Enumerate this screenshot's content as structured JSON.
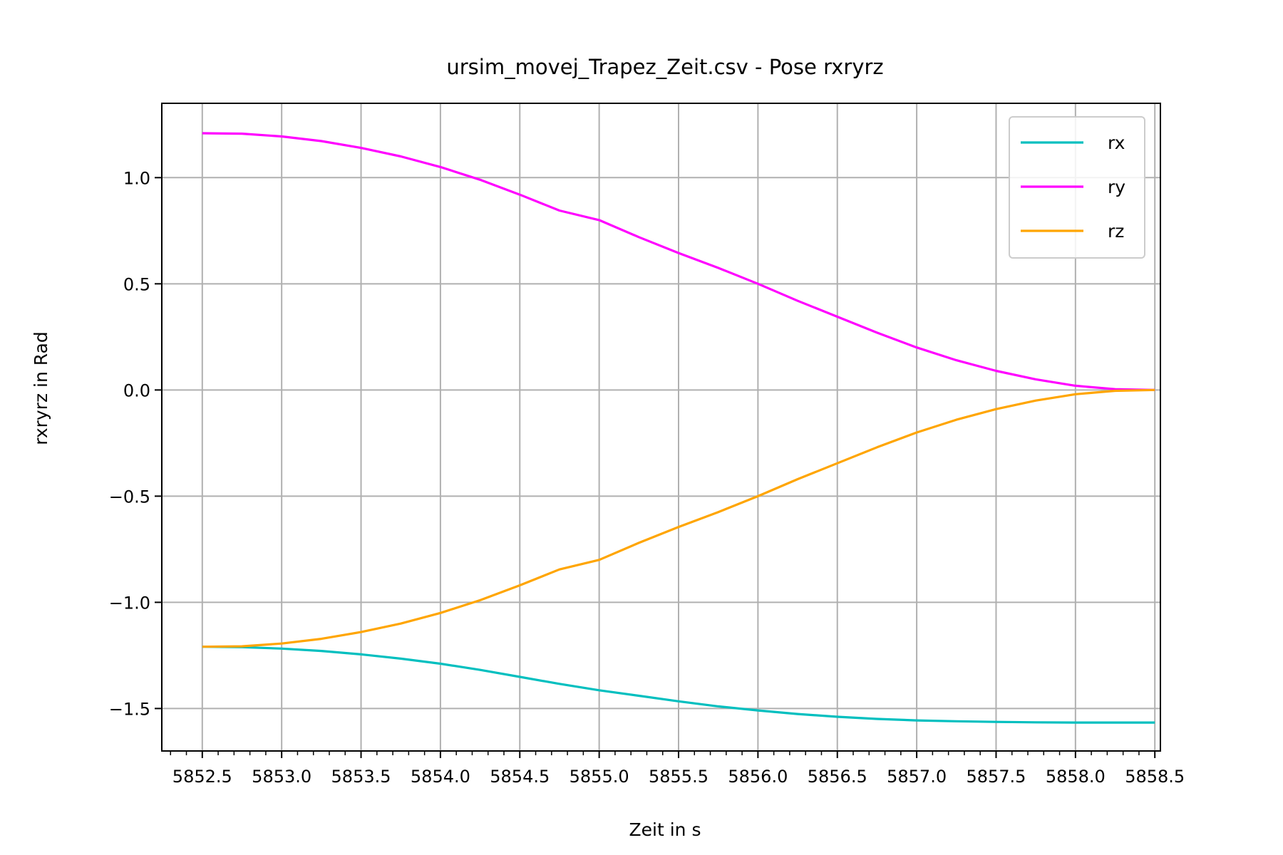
{
  "chart_data": {
    "type": "line",
    "title": "ursim_movej_Trapez_Zeit.csv - Pose rxryrz",
    "xlabel": "Zeit in s",
    "ylabel": "rxryrz in Rad",
    "xlim": [
      5852.245,
      5858.535
    ],
    "ylim": [
      -1.7,
      1.35
    ],
    "x_ticks": [
      5852.5,
      5853.0,
      5853.5,
      5854.0,
      5854.5,
      5855.0,
      5855.5,
      5856.0,
      5856.5,
      5857.0,
      5857.5,
      5858.0,
      5858.5
    ],
    "x_tick_labels": [
      "5852.5",
      "5853.0",
      "5853.5",
      "5854.0",
      "5854.5",
      "5855.0",
      "5855.5",
      "5856.0",
      "5856.5",
      "5857.0",
      "5857.5",
      "5858.0",
      "5858.5"
    ],
    "y_ticks": [
      1.0,
      0.5,
      0.0,
      -0.5,
      -1.0,
      -1.5
    ],
    "y_tick_labels": [
      "1.0",
      "0.5",
      "0.0",
      "−0.5",
      "−1.0",
      "−1.5"
    ],
    "grid": true,
    "legend_position": "top-right",
    "x": [
      5852.5,
      5852.75,
      5853.0,
      5853.25,
      5853.5,
      5853.75,
      5854.0,
      5854.25,
      5854.5,
      5854.75,
      5855.0,
      5855.25,
      5855.5,
      5855.75,
      5856.0,
      5856.25,
      5856.5,
      5856.75,
      5857.0,
      5857.25,
      5857.5,
      5857.75,
      5858.0,
      5858.25,
      5858.5
    ],
    "series": [
      {
        "name": "rx",
        "color": "#00bfbf",
        "values": [
          -1.209,
          -1.211,
          -1.218,
          -1.229,
          -1.245,
          -1.265,
          -1.289,
          -1.318,
          -1.351,
          -1.384,
          -1.414,
          -1.44,
          -1.466,
          -1.49,
          -1.509,
          -1.526,
          -1.539,
          -1.549,
          -1.556,
          -1.56,
          -1.563,
          -1.565,
          -1.566,
          -1.566,
          -1.566
        ]
      },
      {
        "name": "ry",
        "color": "#ff00ff",
        "values": [
          1.209,
          1.207,
          1.194,
          1.172,
          1.14,
          1.1,
          1.05,
          0.99,
          0.92,
          0.845,
          0.8,
          0.72,
          0.645,
          0.575,
          0.5,
          0.42,
          0.345,
          0.27,
          0.2,
          0.14,
          0.09,
          0.05,
          0.02,
          0.004,
          0.0
        ]
      },
      {
        "name": "rz",
        "color": "#ffa500",
        "values": [
          -1.209,
          -1.207,
          -1.194,
          -1.172,
          -1.14,
          -1.1,
          -1.05,
          -0.99,
          -0.92,
          -0.845,
          -0.8,
          -0.72,
          -0.645,
          -0.575,
          -0.5,
          -0.42,
          -0.345,
          -0.27,
          -0.2,
          -0.14,
          -0.09,
          -0.05,
          -0.02,
          -0.004,
          0.0
        ]
      }
    ]
  }
}
